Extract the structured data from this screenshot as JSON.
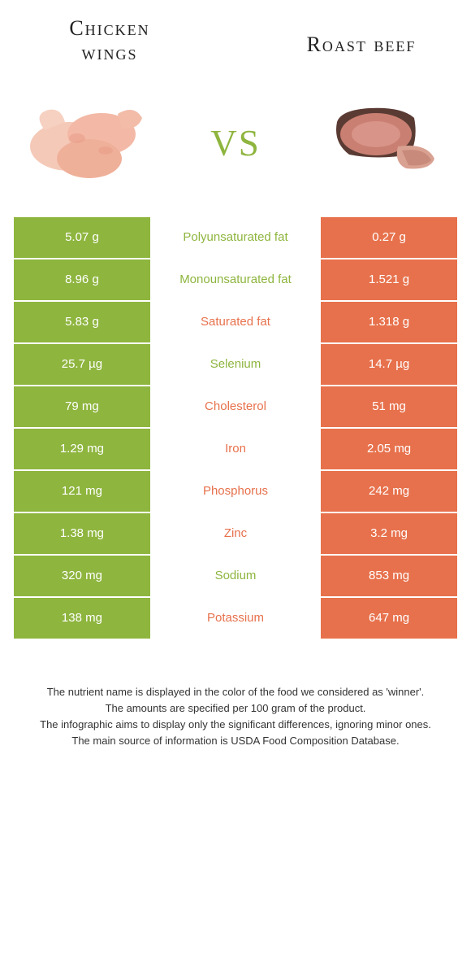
{
  "type": "comparison-table",
  "colors": {
    "left": "#8eb53e",
    "right": "#e7714c",
    "background": "#ffffff",
    "text_dark": "#222222",
    "footer_text": "#333333"
  },
  "typography": {
    "title_fontsize": 26,
    "vs_fontsize": 64,
    "cell_fontsize": 15,
    "footer_fontsize": 13
  },
  "header": {
    "left_title_line1": "Chicken",
    "left_title_line2": "wings",
    "right_title": "Roast beef",
    "vs_label": "vs"
  },
  "rows": [
    {
      "left": "5.07 g",
      "label": "Polyunsaturated fat",
      "right": "0.27 g",
      "winner": "left"
    },
    {
      "left": "8.96 g",
      "label": "Monounsaturated fat",
      "right": "1.521 g",
      "winner": "left"
    },
    {
      "left": "5.83 g",
      "label": "Saturated fat",
      "right": "1.318 g",
      "winner": "right"
    },
    {
      "left": "25.7 µg",
      "label": "Selenium",
      "right": "14.7 µg",
      "winner": "left"
    },
    {
      "left": "79 mg",
      "label": "Cholesterol",
      "right": "51 mg",
      "winner": "right"
    },
    {
      "left": "1.29 mg",
      "label": "Iron",
      "right": "2.05 mg",
      "winner": "right"
    },
    {
      "left": "121 mg",
      "label": "Phosphorus",
      "right": "242 mg",
      "winner": "right"
    },
    {
      "left": "1.38 mg",
      "label": "Zinc",
      "right": "3.2 mg",
      "winner": "right"
    },
    {
      "left": "320 mg",
      "label": "Sodium",
      "right": "853 mg",
      "winner": "left"
    },
    {
      "left": "138 mg",
      "label": "Potassium",
      "right": "647 mg",
      "winner": "right"
    }
  ],
  "footer": {
    "line1": "The nutrient name is displayed in the color of the food we considered as 'winner'.",
    "line2": "The amounts are specified per 100 gram of the product.",
    "line3": "The infographic aims to display only the significant differences, ignoring minor ones.",
    "line4": "The main source of information is USDA Food Composition Database."
  }
}
